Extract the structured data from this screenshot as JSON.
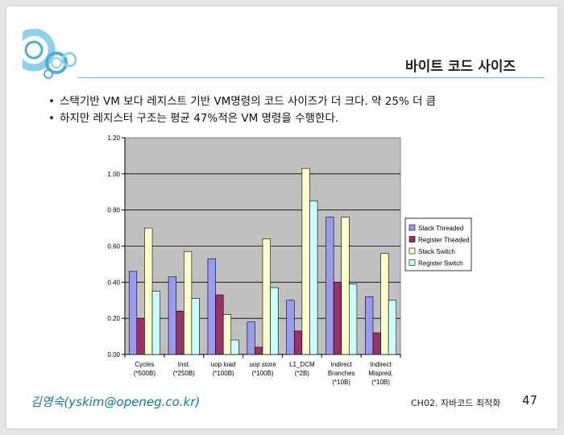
{
  "slide": {
    "title": "바이트 코드 사이즈",
    "bullets": [
      "스택기반 VM 보다 레지스트 기반 VM명령의 코드 사이즈가 더 크다. 약 25% 더 큼",
      "하지만 레지스터 구조는 평균 47%적은 VM 명령을 수행한다."
    ],
    "author": "김영숙(yskim@openeg.co.kr)",
    "chapter": "CH02. 자바코드 최적화",
    "page": "47"
  },
  "chart_data": {
    "type": "bar",
    "title": "",
    "xlabel": "",
    "ylabel": "",
    "ylim": [
      0,
      1.2
    ],
    "yticks": [
      "0.00",
      "0.20",
      "0.40",
      "0.60",
      "0.80",
      "1.00",
      "1.20"
    ],
    "categories": [
      [
        "Cycles",
        "(*500B)"
      ],
      [
        "Inst.",
        "(*250B)"
      ],
      [
        "uop load",
        "(*100B)"
      ],
      [
        "uop store",
        "(*100B)"
      ],
      [
        "L1_DCM",
        "(*2B)"
      ],
      [
        "Indirect",
        "Branches",
        "(*10B)"
      ],
      [
        "Indirect",
        "Mispred.",
        "(*10B)"
      ]
    ],
    "series": [
      {
        "name": "Stack Threaded",
        "color": "#9a9af2",
        "values": [
          0.46,
          0.43,
          0.53,
          0.18,
          0.3,
          0.76,
          0.32
        ]
      },
      {
        "name": "Register Theaded",
        "color": "#993366",
        "values": [
          0.2,
          0.24,
          0.33,
          0.04,
          0.13,
          0.4,
          0.12
        ]
      },
      {
        "name": "Stack Switch",
        "color": "#ffffcc",
        "values": [
          0.7,
          0.57,
          0.22,
          0.64,
          1.03,
          0.76,
          0.56
        ]
      },
      {
        "name": "Register Switch",
        "color": "#ccffff",
        "values": [
          0.35,
          0.31,
          0.08,
          0.37,
          0.85,
          0.39,
          0.3
        ]
      }
    ],
    "legend_position": "right",
    "grid": true,
    "plot_background": "#c0c0c0"
  }
}
